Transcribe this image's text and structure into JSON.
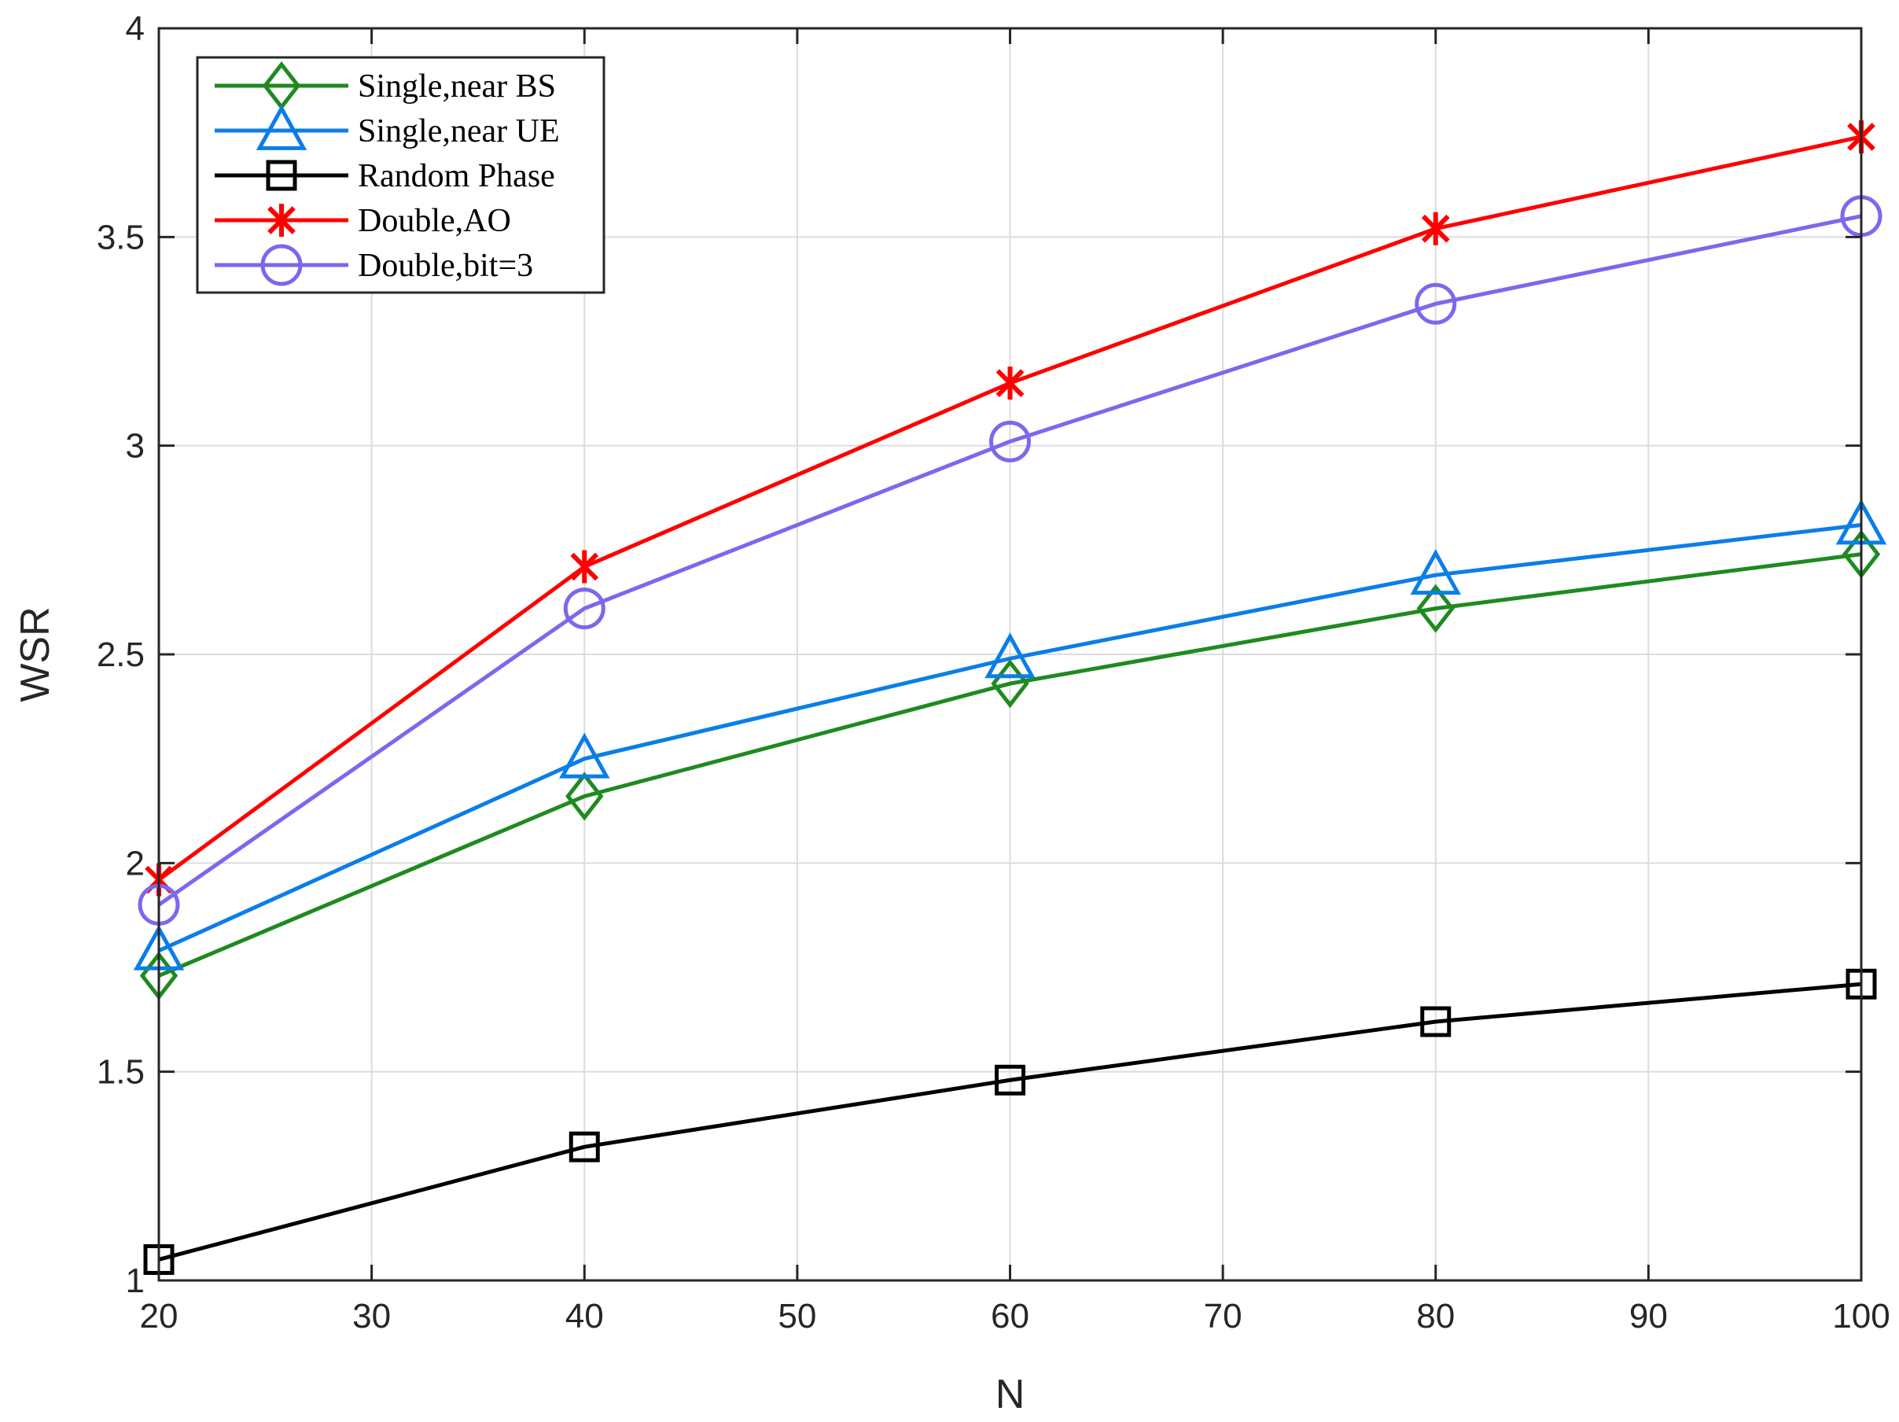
{
  "chart_data": {
    "type": "line",
    "title": "",
    "xlabel": "N",
    "ylabel": "WSR",
    "x": [
      20,
      40,
      60,
      80,
      100
    ],
    "xlim": [
      20,
      100
    ],
    "ylim": [
      1,
      4
    ],
    "xticks": [
      20,
      30,
      40,
      50,
      60,
      70,
      80,
      90,
      100
    ],
    "yticks": [
      1,
      1.5,
      2,
      2.5,
      3,
      3.5,
      4
    ],
    "xtick_labels": [
      "20",
      "30",
      "40",
      "50",
      "60",
      "70",
      "80",
      "90",
      "100"
    ],
    "ytick_labels": [
      "1",
      "1.5",
      "2",
      "2.5",
      "3",
      "3.5",
      "4"
    ],
    "grid": true,
    "legend_position": "top-left",
    "series": [
      {
        "name": "Single,near BS",
        "color": "#1f8a1f",
        "marker": "diamond",
        "values": [
          1.73,
          2.16,
          2.43,
          2.61,
          2.74
        ]
      },
      {
        "name": "Single,near UE",
        "color": "#0a7ee8",
        "marker": "triangle",
        "values": [
          1.79,
          2.25,
          2.49,
          2.69,
          2.81
        ]
      },
      {
        "name": "Random Phase",
        "color": "#000000",
        "marker": "square",
        "values": [
          1.05,
          1.32,
          1.48,
          1.62,
          1.71
        ]
      },
      {
        "name": "Double,AO",
        "color": "#ff0000",
        "marker": "asterisk",
        "values": [
          1.96,
          2.71,
          3.15,
          3.52,
          3.74
        ]
      },
      {
        "name": "Double,bit=3",
        "color": "#7b68ee",
        "marker": "circle",
        "values": [
          1.9,
          2.61,
          3.01,
          3.34,
          3.55
        ]
      }
    ]
  }
}
